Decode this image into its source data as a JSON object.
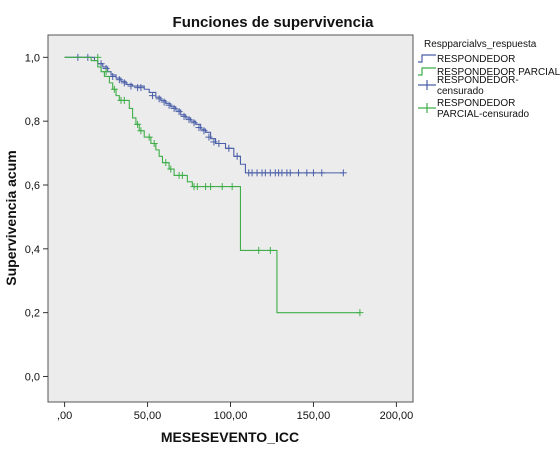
{
  "chart_data": {
    "type": "line",
    "title": "Funciones de supervivencia",
    "xlabel": "MESESEVENTO_ICC",
    "ylabel": "Supervivencia acum",
    "xlim": [
      -10,
      210
    ],
    "ylim": [
      -0.08,
      1.07
    ],
    "xticks": [
      0,
      50,
      100,
      150,
      200
    ],
    "xtick_labels": [
      ",00",
      "50,00",
      "100,00",
      "150,00",
      "200,00"
    ],
    "yticks": [
      0,
      0.2,
      0.4,
      0.6,
      0.8,
      1.0
    ],
    "ytick_labels": [
      "0,0",
      "0,2",
      "0,4",
      "0,6",
      "0,8",
      "1,0"
    ],
    "grid": false,
    "legend_position": "right",
    "legend": {
      "title": "Respparcialvs_respuesta",
      "entries": [
        {
          "label": "RESPONDEDOR",
          "kind": "line",
          "color": "#4a5fa8"
        },
        {
          "label": "RESPONDEDOR PARCIAL",
          "kind": "line",
          "color": "#3fae49"
        },
        {
          "label": "RESPONDEDOR-\ncensurado",
          "kind": "censor",
          "color": "#4a5fa8"
        },
        {
          "label": "RESPONDEDOR\nPARCIAL-censurado",
          "kind": "censor",
          "color": "#3fae49"
        }
      ]
    },
    "series": [
      {
        "name": "RESPONDEDOR",
        "color": "#4a5fa8",
        "steps": [
          [
            0,
            1.0
          ],
          [
            18,
            0.99
          ],
          [
            20,
            0.98
          ],
          [
            23,
            0.97
          ],
          [
            26,
            0.955
          ],
          [
            28,
            0.945
          ],
          [
            31,
            0.935
          ],
          [
            34,
            0.925
          ],
          [
            37,
            0.915
          ],
          [
            41,
            0.91
          ],
          [
            48,
            0.9
          ],
          [
            51,
            0.89
          ],
          [
            55,
            0.875
          ],
          [
            58,
            0.865
          ],
          [
            61,
            0.855
          ],
          [
            64,
            0.845
          ],
          [
            67,
            0.835
          ],
          [
            70,
            0.82
          ],
          [
            73,
            0.81
          ],
          [
            76,
            0.8
          ],
          [
            79,
            0.79
          ],
          [
            82,
            0.775
          ],
          [
            85,
            0.765
          ],
          [
            88,
            0.745
          ],
          [
            91,
            0.73
          ],
          [
            97,
            0.715
          ],
          [
            102,
            0.69
          ],
          [
            106,
            0.665
          ],
          [
            109,
            0.638
          ],
          [
            168,
            0.638
          ]
        ],
        "censored": [
          [
            8,
            1.0
          ],
          [
            14,
            1.0
          ],
          [
            22,
            0.98
          ],
          [
            25,
            0.965
          ],
          [
            29,
            0.94
          ],
          [
            33,
            0.93
          ],
          [
            36,
            0.92
          ],
          [
            40,
            0.91
          ],
          [
            44,
            0.905
          ],
          [
            46,
            0.905
          ],
          [
            53,
            0.88
          ],
          [
            57,
            0.87
          ],
          [
            60,
            0.86
          ],
          [
            63,
            0.85
          ],
          [
            66,
            0.84
          ],
          [
            69,
            0.83
          ],
          [
            72,
            0.815
          ],
          [
            75,
            0.805
          ],
          [
            78,
            0.795
          ],
          [
            81,
            0.78
          ],
          [
            84,
            0.77
          ],
          [
            87,
            0.75
          ],
          [
            90,
            0.735
          ],
          [
            93,
            0.73
          ],
          [
            99,
            0.715
          ],
          [
            104,
            0.69
          ],
          [
            111,
            0.638
          ],
          [
            113,
            0.638
          ],
          [
            116,
            0.638
          ],
          [
            119,
            0.638
          ],
          [
            121,
            0.638
          ],
          [
            124,
            0.638
          ],
          [
            127,
            0.638
          ],
          [
            129,
            0.638
          ],
          [
            131,
            0.638
          ],
          [
            134,
            0.638
          ],
          [
            136,
            0.638
          ],
          [
            141,
            0.638
          ],
          [
            146,
            0.638
          ],
          [
            150,
            0.638
          ],
          [
            155,
            0.638
          ],
          [
            168,
            0.638
          ]
        ]
      },
      {
        "name": "RESPONDEDOR PARCIAL",
        "color": "#3fae49",
        "steps": [
          [
            0,
            1.0
          ],
          [
            16,
            0.99
          ],
          [
            20,
            0.97
          ],
          [
            22,
            0.955
          ],
          [
            24,
            0.94
          ],
          [
            27,
            0.92
          ],
          [
            29,
            0.9
          ],
          [
            31,
            0.88
          ],
          [
            33,
            0.865
          ],
          [
            39,
            0.84
          ],
          [
            41,
            0.81
          ],
          [
            43,
            0.79
          ],
          [
            45,
            0.77
          ],
          [
            48,
            0.75
          ],
          [
            52,
            0.73
          ],
          [
            55,
            0.71
          ],
          [
            57,
            0.69
          ],
          [
            59,
            0.67
          ],
          [
            63,
            0.65
          ],
          [
            66,
            0.63
          ],
          [
            74,
            0.61
          ],
          [
            77,
            0.595
          ],
          [
            106,
            0.395
          ],
          [
            128,
            0.2
          ],
          [
            178,
            0.2
          ]
        ],
        "censored": [
          [
            20,
            1.0
          ],
          [
            25,
            0.955
          ],
          [
            30,
            0.9
          ],
          [
            34,
            0.865
          ],
          [
            36,
            0.865
          ],
          [
            44,
            0.79
          ],
          [
            46,
            0.77
          ],
          [
            51,
            0.75
          ],
          [
            54,
            0.73
          ],
          [
            61,
            0.67
          ],
          [
            64,
            0.65
          ],
          [
            69,
            0.63
          ],
          [
            71,
            0.63
          ],
          [
            78,
            0.595
          ],
          [
            80,
            0.595
          ],
          [
            85,
            0.595
          ],
          [
            88,
            0.595
          ],
          [
            95,
            0.595
          ],
          [
            101,
            0.595
          ],
          [
            117,
            0.395
          ],
          [
            124,
            0.395
          ],
          [
            178,
            0.2
          ]
        ]
      }
    ]
  }
}
